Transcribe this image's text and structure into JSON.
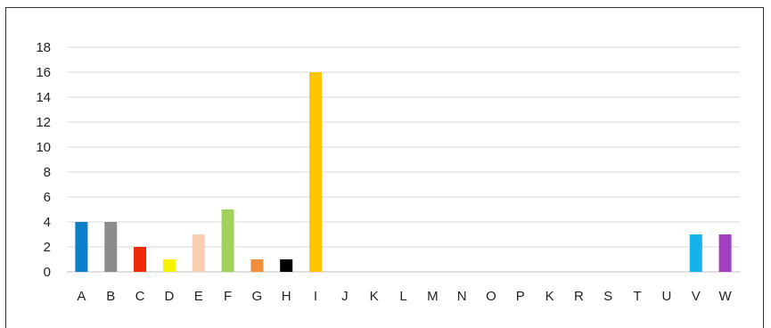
{
  "chart_data": {
    "type": "bar",
    "title": "",
    "xlabel": "",
    "ylabel": "",
    "categories": [
      "A",
      "B",
      "C",
      "D",
      "E",
      "F",
      "G",
      "H",
      "I",
      "J",
      "K",
      "L",
      "M",
      "N",
      "O",
      "P",
      "K",
      "R",
      "S",
      "T",
      "U",
      "V",
      "W"
    ],
    "values": [
      4,
      4,
      2,
      1,
      3,
      5,
      1,
      1,
      16,
      0,
      0,
      0,
      0,
      0,
      0,
      0,
      0,
      0,
      0,
      0,
      0,
      3,
      3
    ],
    "colors": [
      "#0a7fc6",
      "#8c8c8c",
      "#ee2a0b",
      "#f7f200",
      "#f8cfb1",
      "#a2d15c",
      "#ef8f3d",
      "#000000",
      "#ffc600",
      "#000000",
      "#000000",
      "#000000",
      "#000000",
      "#000000",
      "#000000",
      "#000000",
      "#000000",
      "#000000",
      "#000000",
      "#000000",
      "#000000",
      "#14b3ea",
      "#a040c0"
    ],
    "ylim": [
      0,
      18
    ],
    "yticks": [
      "0",
      "2",
      "4",
      "6",
      "8",
      "10",
      "12",
      "14",
      "16",
      "18"
    ],
    "grid": true,
    "legend": "none"
  }
}
